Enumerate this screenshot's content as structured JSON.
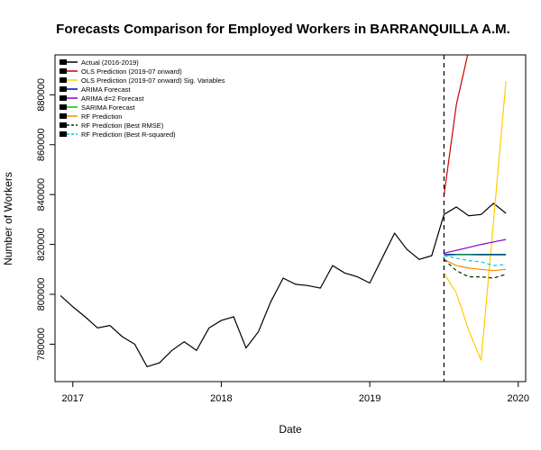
{
  "chart_data": {
    "type": "line",
    "title": "Forecasts Comparison for Employed Workers in BARRANQUILLA A.M.",
    "xlabel": "Date",
    "ylabel": "Number of Workers",
    "xlim": [
      2016.88,
      2020.05
    ],
    "ylim": [
      765000,
      896000
    ],
    "x_ticks": [
      2017,
      2018,
      2019,
      2020
    ],
    "x_tick_labels": [
      "2017",
      "2018",
      "2019",
      "2020"
    ],
    "y_ticks": [
      780000,
      800000,
      820000,
      840000,
      860000,
      880000
    ],
    "y_tick_labels": [
      "780000",
      "800000",
      "820000",
      "840000",
      "860000",
      "880000"
    ],
    "forecast_start": 2019.5,
    "grid": false,
    "legend_position": "top-left",
    "series": [
      {
        "name": "Actual (2016-2019)",
        "color": "#000000",
        "dash": "solid",
        "x": [
          2016.917,
          2017.0,
          2017.083,
          2017.167,
          2017.25,
          2017.333,
          2017.417,
          2017.5,
          2017.583,
          2017.667,
          2017.75,
          2017.833,
          2017.917,
          2018.0,
          2018.083,
          2018.167,
          2018.25,
          2018.333,
          2018.417,
          2018.5,
          2018.583,
          2018.667,
          2018.75,
          2018.833,
          2018.917,
          2019.0,
          2019.083,
          2019.167,
          2019.25,
          2019.333,
          2019.417,
          2019.5,
          2019.583,
          2019.667,
          2019.75,
          2019.833,
          2019.917
        ],
        "y": [
          799500,
          795000,
          791000,
          786500,
          787500,
          783000,
          780000,
          771000,
          772500,
          777500,
          781000,
          777500,
          786500,
          789500,
          791000,
          778500,
          785000,
          797000,
          806500,
          804000,
          803500,
          802500,
          811500,
          808500,
          807000,
          804500,
          814500,
          824500,
          818000,
          814000,
          815500,
          832000,
          835000,
          831500,
          832000,
          836500,
          832500
        ]
      },
      {
        "name": "OLS Prediction (2019-07 onward)",
        "color": "#cc0000",
        "dash": "solid",
        "x": [
          2019.5,
          2019.583,
          2019.667
        ],
        "y": [
          839500,
          876000,
          898000
        ]
      },
      {
        "name": "OLS Prediction (2019-07 onward) Sig. Variables",
        "color": "#ffcc00",
        "dash": "solid",
        "x": [
          2019.5,
          2019.583,
          2019.667,
          2019.75,
          2019.833,
          2019.917
        ],
        "y": [
          808500,
          800500,
          785500,
          773500,
          829000,
          885500
        ]
      },
      {
        "name": "ARIMA Forecast",
        "color": "#0000cc",
        "dash": "solid",
        "x": [
          2019.5,
          2019.583,
          2019.667,
          2019.75,
          2019.833,
          2019.917
        ],
        "y": [
          816000,
          816000,
          816000,
          816000,
          816000,
          816000
        ]
      },
      {
        "name": "ARIMA d=2 Forecast",
        "color": "#8800cc",
        "dash": "solid",
        "x": [
          2019.5,
          2019.583,
          2019.667,
          2019.75,
          2019.833,
          2019.917
        ],
        "y": [
          816500,
          817600,
          818800,
          820000,
          821000,
          822000
        ]
      },
      {
        "name": "SARIMA Forecast",
        "color": "#00cc00",
        "dash": "solid",
        "x": [
          2019.5,
          2019.583,
          2019.667,
          2019.75,
          2019.833,
          2019.917
        ],
        "y": [
          815500,
          815800,
          815800,
          815700,
          815700,
          815700
        ]
      },
      {
        "name": "RF Prediction",
        "color": "#ff8800",
        "dash": "solid",
        "x": [
          2019.5,
          2019.583,
          2019.667,
          2019.75,
          2019.833,
          2019.917
        ],
        "y": [
          814000,
          811500,
          810500,
          810000,
          809500,
          810000
        ]
      },
      {
        "name": "RF Prediction (Best RMSE)",
        "color": "#003300",
        "dash": "dashed",
        "x": [
          2019.5,
          2019.583,
          2019.667,
          2019.75,
          2019.833,
          2019.917
        ],
        "y": [
          814000,
          809500,
          807000,
          807000,
          806500,
          808000
        ]
      },
      {
        "name": "RF Prediction (Best R-squared)",
        "color": "#00cccc",
        "dash": "dashed",
        "x": [
          2019.5,
          2019.583,
          2019.667,
          2019.75,
          2019.833,
          2019.917
        ],
        "y": [
          815500,
          814500,
          813500,
          813000,
          811500,
          812000
        ]
      }
    ]
  }
}
